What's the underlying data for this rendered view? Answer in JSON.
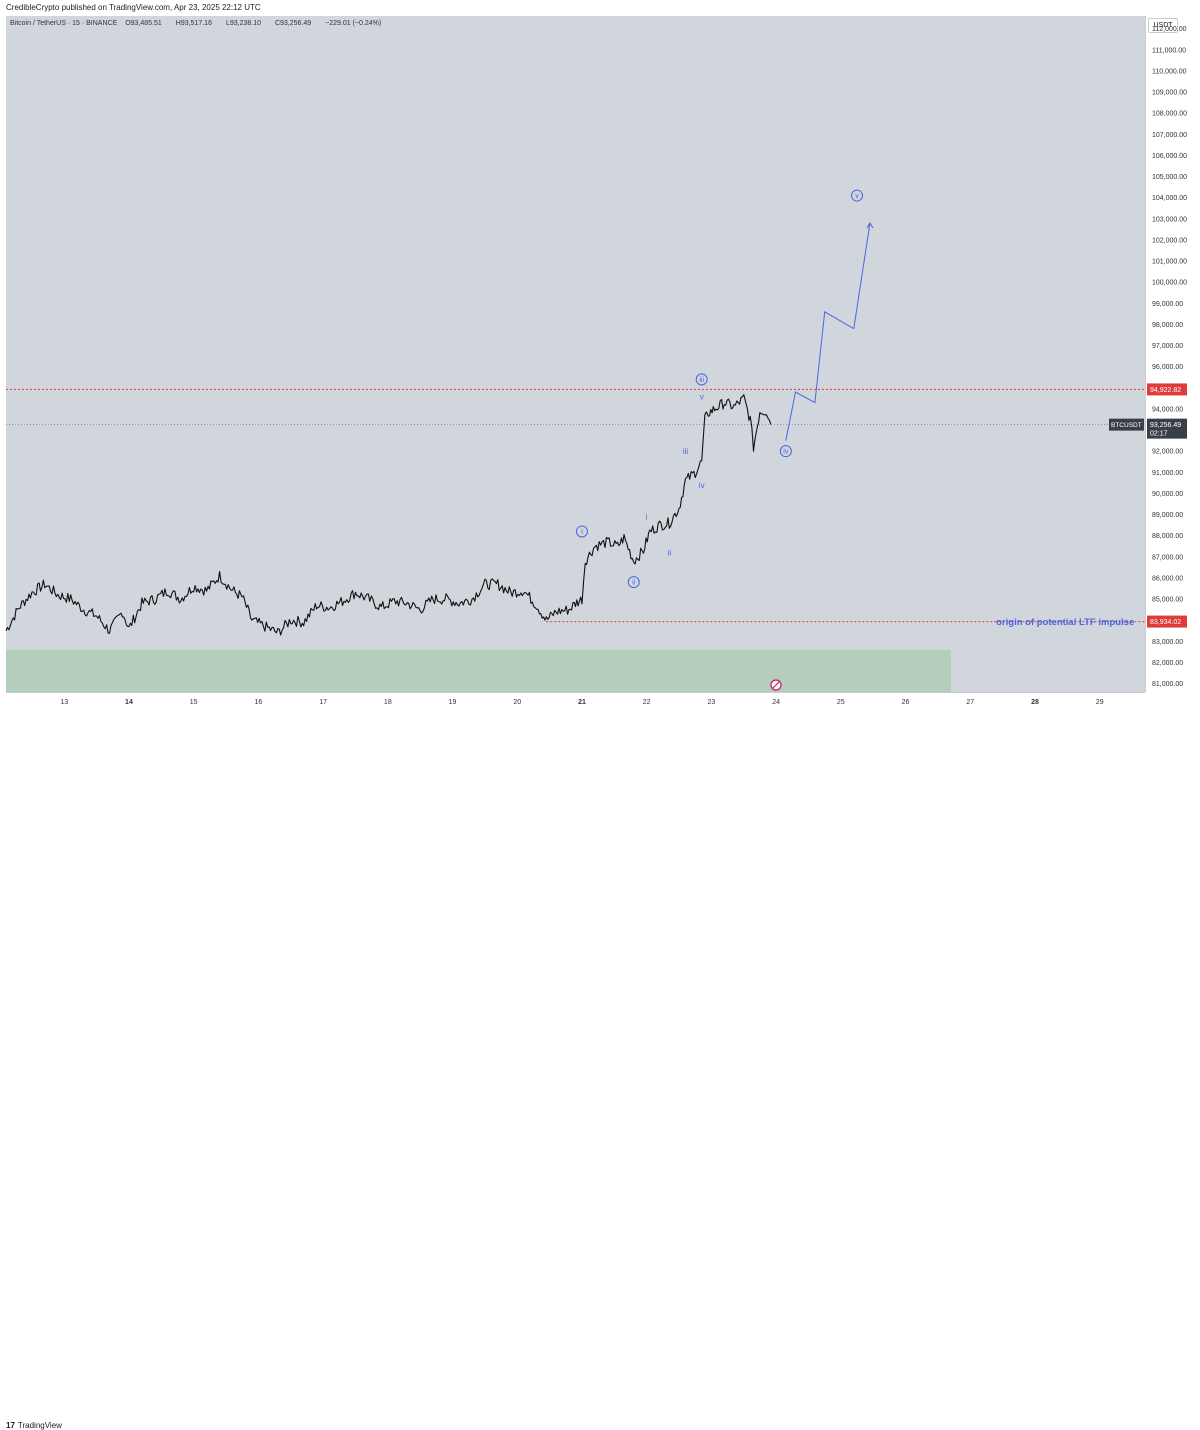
{
  "header": {
    "publisher": "CredibleCrypto published on TradingView.com, Apr 23, 2025 22:12 UTC"
  },
  "legend": {
    "symbol": "Bitcoin / TetherUS · 15 · BINANCE",
    "open_label": "O",
    "open": "93,485.51",
    "high_label": "H",
    "high": "93,517.16",
    "low_label": "L",
    "low": "93,238.10",
    "close_label": "C",
    "close": "93,256.49",
    "change": "−229.01 (−0.24%)"
  },
  "currency": "USDT",
  "footer": {
    "logo_mark": "17",
    "brand": "TradingView"
  },
  "colors": {
    "background": "#d1d5dc",
    "candle": "#111111",
    "wave": "#4a67e0",
    "resistance": "#e03b3b",
    "zone": "#a9cbb2",
    "price_tag": "#3a3f47"
  },
  "chart_data": {
    "type": "line",
    "title": "",
    "xlabel": "",
    "ylabel": "",
    "ylim": [
      80600,
      112600
    ],
    "xlim": [
      12.1,
      29.7
    ],
    "y_ticks": [
      "81,000.00",
      "82,000.00",
      "83,000.00",
      "84,000.00",
      "85,000.00",
      "86,000.00",
      "87,000.00",
      "88,000.00",
      "89,000.00",
      "90,000.00",
      "91,000.00",
      "92,000.00",
      "93,000.00",
      "94,000.00",
      "95,000.00",
      "96,000.00",
      "97,000.00",
      "98,000.00",
      "99,000.00",
      "100,000.00",
      "101,000.00",
      "102,000.00",
      "103,000.00",
      "104,000.00",
      "105,000.00",
      "106,000.00",
      "107,000.00",
      "108,000.00",
      "109,000.00",
      "110,000.00",
      "111,000.00",
      "112,000.00"
    ],
    "x_ticks": [
      {
        "label": "13",
        "x": 13
      },
      {
        "label": "14",
        "x": 14
      },
      {
        "label": "15",
        "x": 15
      },
      {
        "label": "16",
        "x": 16
      },
      {
        "label": "17",
        "x": 17
      },
      {
        "label": "18",
        "x": 18
      },
      {
        "label": "19",
        "x": 19
      },
      {
        "label": "20",
        "x": 20
      },
      {
        "label": "21",
        "x": 21
      },
      {
        "label": "22",
        "x": 22
      },
      {
        "label": "23",
        "x": 23
      },
      {
        "label": "24",
        "x": 24
      },
      {
        "label": "25",
        "x": 25
      },
      {
        "label": "26",
        "x": 26
      },
      {
        "label": "27",
        "x": 27
      },
      {
        "label": "28",
        "x": 28
      },
      {
        "label": "29",
        "x": 29
      }
    ],
    "bold_x_ticks": [
      "14",
      "21",
      "28"
    ],
    "series": [
      {
        "kind": "price",
        "x": [
          12.1,
          12.3,
          12.5,
          12.7,
          12.9,
          13.1,
          13.3,
          13.5,
          13.7,
          13.9,
          14.0,
          14.2,
          14.4,
          14.6,
          14.8,
          15.0,
          15.2,
          15.4,
          15.6,
          15.75,
          15.9,
          16.1,
          16.3,
          16.5,
          16.7,
          16.9,
          17.1,
          17.3,
          17.5,
          17.7,
          17.9,
          18.1,
          18.3,
          18.5,
          18.7,
          18.9,
          19.1,
          19.3,
          19.5,
          19.7,
          19.9,
          20.1,
          20.3,
          20.45,
          20.6,
          20.8,
          20.9,
          21.0,
          21.05,
          21.2,
          21.4,
          21.55,
          21.65,
          21.8,
          21.95,
          22.05,
          22.2,
          22.35,
          22.5,
          22.6,
          22.75,
          22.85,
          22.9,
          22.95,
          23.05,
          23.2,
          23.35,
          23.5,
          23.6,
          23.65,
          23.75,
          23.85,
          23.92
        ],
        "y": [
          83500,
          84600,
          85300,
          85700,
          85200,
          85000,
          84500,
          84200,
          83500,
          84400,
          83600,
          84800,
          85000,
          85400,
          85000,
          85600,
          85400,
          86100,
          85400,
          85100,
          84000,
          83700,
          83400,
          84000,
          83900,
          84700,
          84600,
          84900,
          85300,
          85000,
          84600,
          84900,
          84800,
          84500,
          85000,
          85000,
          84800,
          85000,
          85700,
          85700,
          85300,
          85400,
          84700,
          84000,
          84400,
          84500,
          84800,
          85000,
          86800,
          87500,
          87700,
          87500,
          87900,
          86800,
          87300,
          88200,
          88500,
          88600,
          89300,
          90600,
          91000,
          91500,
          93500,
          93800,
          94000,
          94300,
          94100,
          94500,
          93500,
          92200,
          93900,
          93900,
          93256
        ]
      },
      {
        "kind": "projection",
        "x": [
          24.15,
          24.3,
          24.6,
          24.75,
          25.2
        ],
        "y": [
          92500,
          94800,
          94300,
          98600,
          97800
        ]
      },
      {
        "kind": "projection-final",
        "x": [
          25.2,
          25.45
        ],
        "y": [
          97800,
          102800
        ]
      }
    ],
    "levels": [
      {
        "label": "94,922.82",
        "value": 94922.82,
        "style": "dotted-red"
      },
      {
        "label": "83,934.02",
        "value": 83934.02,
        "style": "dotted-red",
        "from_x": 20.45
      },
      {
        "label": "93,256.49",
        "value": 93256.49,
        "style": "dotted-gray",
        "symbol": "BTCUSDT",
        "countdown": "02:17"
      }
    ],
    "zone": {
      "x_from": 12.1,
      "x_to": 26.7,
      "y_from": 80600,
      "y_to": 82600
    },
    "wave_labels": [
      {
        "text": "i",
        "x": 21.0,
        "y": 88200,
        "circled": true
      },
      {
        "text": "ii",
        "x": 21.8,
        "y": 85800,
        "circled": true
      },
      {
        "text": "iii",
        "x": 22.85,
        "y": 95400,
        "circled": true
      },
      {
        "text": "iv",
        "x": 24.15,
        "y": 92000,
        "circled": true
      },
      {
        "text": "v",
        "x": 25.25,
        "y": 104100,
        "circled": true
      },
      {
        "text": "i",
        "x": 22.0,
        "y": 88900,
        "circled": false
      },
      {
        "text": "ii",
        "x": 22.35,
        "y": 87200,
        "circled": false
      },
      {
        "text": "iii",
        "x": 22.6,
        "y": 92000,
        "circled": false
      },
      {
        "text": "iv",
        "x": 22.85,
        "y": 90400,
        "circled": false
      },
      {
        "text": "v",
        "x": 22.85,
        "y": 94600,
        "circled": false
      }
    ],
    "annotation": {
      "text": "origin of potential LTF impulse",
      "x": 27.4,
      "y": 83934.02
    }
  }
}
